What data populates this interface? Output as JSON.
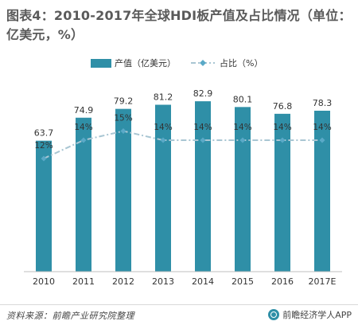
{
  "title": "图表4：2010-2017年全球HDI板产值及占比情况（单位：亿美元，%）",
  "source": "资料来源：前瞻产业研究院整理",
  "brand": "前瞻经济学人APP",
  "colors": {
    "bar": "#2f8fa7",
    "line": "#a9c6d3",
    "marker": "#5aa9c7",
    "text": "#333333"
  },
  "chart_data": {
    "type": "bar",
    "categories": [
      "2010",
      "2011",
      "2012",
      "2013",
      "2014",
      "2015",
      "2016",
      "2017E"
    ],
    "series": [
      {
        "name": "产值（亿美元）",
        "type": "bar",
        "values": [
          63.7,
          74.9,
          79.2,
          81.2,
          82.9,
          80.1,
          76.8,
          78.3
        ]
      },
      {
        "name": "占比（%）",
        "type": "line",
        "values": [
          12,
          14,
          15,
          14,
          14,
          14,
          14,
          14
        ],
        "labels": [
          "12%",
          "14%",
          "15%",
          "14%",
          "14%",
          "14%",
          "14%",
          "14%"
        ]
      }
    ],
    "legend_position": "top",
    "grid": false
  }
}
